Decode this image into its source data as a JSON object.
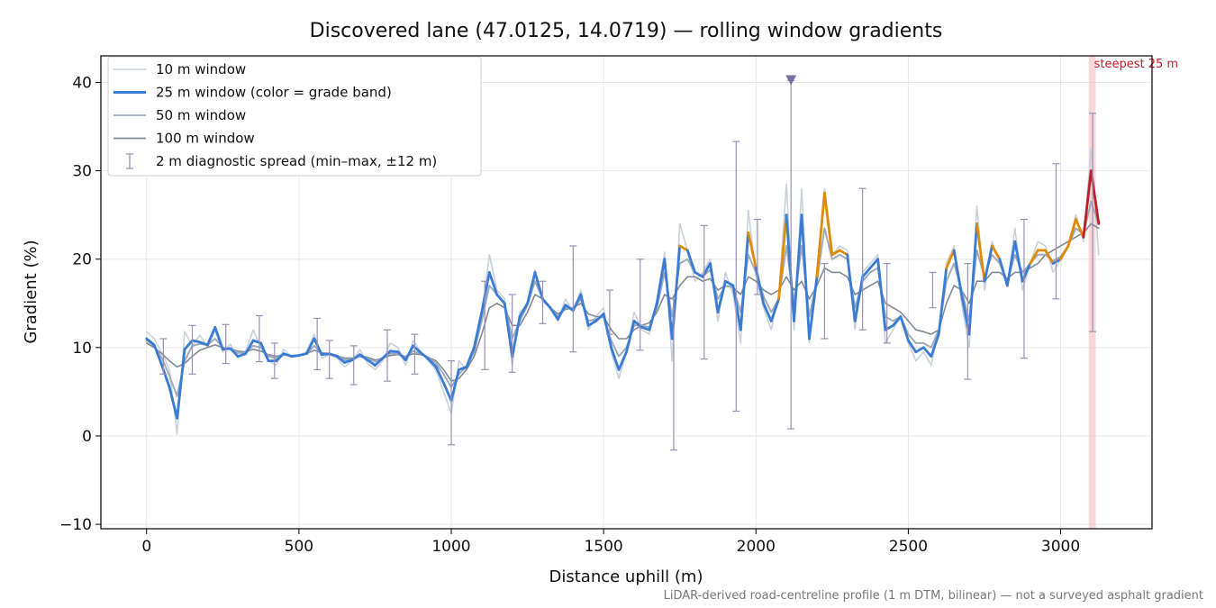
{
  "chart_data": {
    "type": "line",
    "title": "Discovered lane (47.0125, 14.0719) — rolling window gradients",
    "xlabel": "Distance uphill (m)",
    "ylabel": "Gradient (%)",
    "xlim": [
      -150,
      3300
    ],
    "ylim": [
      -10.5,
      43
    ],
    "xticks": [
      0,
      500,
      1000,
      1500,
      2000,
      2500,
      3000
    ],
    "yticks": [
      -10,
      0,
      10,
      20,
      30,
      40
    ],
    "ytick_labels": [
      "−10",
      "0",
      "10",
      "20",
      "30",
      "40"
    ],
    "grid": true,
    "legend_position": "top-left",
    "footnote": "LiDAR-derived road-centreline profile (1 m DTM, bilinear) — not a surveyed asphalt gradient",
    "legend": [
      {
        "label": "10 m window",
        "color": "#c8d0da",
        "style": "line-thin"
      },
      {
        "label": "25 m window (color = grade band)",
        "color": "#3a7bd5",
        "style": "line-thick"
      },
      {
        "label": "50 m window",
        "color": "#9eabb8",
        "style": "line"
      },
      {
        "label": "100 m window",
        "color": "#808a96",
        "style": "line"
      },
      {
        "label": "2 m diagnostic spread (min–max, ±12 m)",
        "color": "#9a90b5",
        "style": "errorbar"
      }
    ],
    "grade_bands": [
      {
        "min": -100,
        "max": 20,
        "color": "#3a7bd5"
      },
      {
        "min": 20,
        "max": 25,
        "color": "#e08a00"
      },
      {
        "min": 25,
        "max": 100,
        "color": "#c01c28"
      }
    ],
    "steepest": {
      "label": "steepest 25 m",
      "x_range": [
        3092,
        3115
      ],
      "color": "#f4b6b6",
      "label_color": "#c01c28"
    },
    "marker": {
      "x": 2115,
      "y": 40.2,
      "color": "#7d6e9e"
    },
    "x": [
      0,
      25,
      50,
      75,
      100,
      125,
      150,
      175,
      200,
      225,
      250,
      275,
      300,
      325,
      350,
      375,
      400,
      425,
      450,
      475,
      500,
      525,
      550,
      575,
      600,
      625,
      650,
      675,
      700,
      725,
      750,
      775,
      800,
      825,
      850,
      875,
      900,
      925,
      950,
      975,
      1000,
      1025,
      1050,
      1075,
      1100,
      1125,
      1150,
      1175,
      1200,
      1225,
      1250,
      1275,
      1300,
      1325,
      1350,
      1375,
      1400,
      1425,
      1450,
      1475,
      1500,
      1525,
      1550,
      1575,
      1600,
      1625,
      1650,
      1675,
      1700,
      1725,
      1750,
      1775,
      1800,
      1825,
      1850,
      1875,
      1900,
      1925,
      1950,
      1975,
      2000,
      2025,
      2050,
      2075,
      2100,
      2125,
      2150,
      2175,
      2200,
      2225,
      2250,
      2275,
      2300,
      2325,
      2350,
      2375,
      2400,
      2425,
      2450,
      2475,
      2500,
      2525,
      2550,
      2575,
      2600,
      2625,
      2650,
      2675,
      2700,
      2725,
      2750,
      2775,
      2800,
      2825,
      2850,
      2875,
      2900,
      2925,
      2950,
      2975,
      3000,
      3025,
      3050,
      3075,
      3100,
      3125
    ],
    "series": [
      {
        "name": "10 m window",
        "color": "#c8d0da",
        "width": 1.6,
        "values": [
          11.8,
          11.0,
          9.4,
          7.5,
          0.2,
          11.8,
          10.2,
          11.4,
          10.0,
          12.0,
          9.5,
          10.4,
          8.8,
          9.6,
          12.0,
          10.0,
          8.5,
          8.0,
          9.8,
          9.0,
          9.2,
          9.5,
          11.5,
          8.8,
          9.2,
          8.8,
          7.8,
          8.5,
          9.8,
          8.2,
          7.5,
          8.5,
          10.5,
          10.0,
          8.0,
          10.8,
          9.5,
          8.5,
          7.4,
          5.0,
          2.5,
          8.5,
          7.5,
          10.0,
          13.8,
          20.5,
          16.5,
          15.5,
          8.0,
          14.0,
          14.8,
          18.8,
          15.2,
          14.5,
          13.0,
          15.5,
          14.0,
          16.5,
          12.0,
          13.5,
          14.5,
          9.5,
          6.5,
          9.5,
          14.0,
          12.0,
          11.5,
          15.5,
          20.8,
          8.5,
          24.0,
          21.0,
          17.5,
          18.5,
          20.0,
          13.0,
          18.5,
          16.0,
          10.5,
          25.5,
          18.0,
          14.5,
          12.0,
          16.0,
          28.5,
          12.0,
          28.0,
          10.5,
          18.5,
          28.0,
          20.5,
          21.5,
          21.0,
          12.0,
          18.5,
          19.5,
          20.5,
          10.5,
          12.0,
          13.5,
          10.5,
          8.5,
          9.5,
          8.0,
          12.0,
          19.5,
          21.5,
          15.0,
          10.0,
          26.0,
          16.5,
          22.0,
          19.5,
          17.0,
          23.5,
          16.5,
          19.5,
          22.0,
          21.5,
          18.5,
          20.0,
          21.5,
          25.0,
          22.0,
          32.5,
          20.5
        ]
      },
      {
        "name": "25 m window",
        "color": "#3a7bd5",
        "width": 2.8,
        "banded": true,
        "values": [
          11.0,
          10.3,
          8.0,
          5.5,
          2.0,
          9.8,
          10.8,
          10.6,
          10.3,
          12.3,
          9.8,
          9.9,
          9.0,
          9.3,
          10.8,
          10.5,
          8.5,
          8.5,
          9.3,
          9.0,
          9.1,
          9.3,
          11.0,
          9.2,
          9.3,
          9.0,
          8.3,
          8.6,
          9.2,
          8.6,
          8.0,
          8.8,
          9.6,
          9.5,
          8.6,
          10.2,
          9.4,
          8.7,
          7.8,
          6.0,
          4.0,
          7.5,
          7.8,
          10.0,
          14.0,
          18.5,
          16.0,
          15.0,
          9.0,
          13.5,
          15.0,
          18.5,
          15.5,
          14.5,
          13.2,
          14.8,
          14.2,
          16.0,
          12.5,
          13.0,
          13.8,
          10.0,
          7.5,
          9.5,
          13.0,
          12.3,
          12.0,
          15.0,
          20.0,
          11.0,
          21.5,
          21.0,
          18.5,
          18.0,
          19.5,
          14.0,
          17.5,
          17.0,
          12.0,
          23.0,
          19.0,
          15.0,
          13.0,
          15.5,
          25.0,
          13.0,
          25.0,
          11.0,
          18.0,
          27.5,
          20.5,
          21.0,
          20.5,
          13.0,
          18.0,
          19.0,
          20.0,
          12.0,
          12.5,
          13.5,
          10.8,
          9.5,
          10.0,
          9.0,
          11.5,
          19.0,
          21.0,
          16.0,
          11.5,
          24.0,
          17.5,
          21.5,
          20.0,
          17.0,
          22.0,
          17.5,
          19.5,
          21.0,
          21.0,
          19.5,
          20.0,
          21.5,
          24.5,
          22.5,
          30.0,
          24.0
        ]
      },
      {
        "name": "50 m window",
        "color": "#9eabb8",
        "width": 2.0,
        "values": [
          10.8,
          10.2,
          8.8,
          6.8,
          4.5,
          8.5,
          10.2,
          10.4,
          10.3,
          11.0,
          10.0,
          9.8,
          9.4,
          9.4,
          10.2,
          10.0,
          9.0,
          8.8,
          9.2,
          9.1,
          9.1,
          9.3,
          10.2,
          9.4,
          9.3,
          9.1,
          8.6,
          8.7,
          9.0,
          8.8,
          8.4,
          8.8,
          9.3,
          9.3,
          8.9,
          9.6,
          9.3,
          8.9,
          8.2,
          7.0,
          5.5,
          7.0,
          7.8,
          9.5,
          13.0,
          17.0,
          16.0,
          15.0,
          11.0,
          13.0,
          14.8,
          17.5,
          15.5,
          14.5,
          13.5,
          14.5,
          14.3,
          15.5,
          13.0,
          13.2,
          13.5,
          10.8,
          9.0,
          10.0,
          12.5,
          12.5,
          12.3,
          14.5,
          18.5,
          13.5,
          19.5,
          20.0,
          18.5,
          18.0,
          18.8,
          15.5,
          17.0,
          16.8,
          14.0,
          20.5,
          18.5,
          15.8,
          14.0,
          15.5,
          21.5,
          15.0,
          21.5,
          13.5,
          17.5,
          23.5,
          20.0,
          20.5,
          20.0,
          14.5,
          17.5,
          18.5,
          19.0,
          13.5,
          13.0,
          13.5,
          11.5,
          10.5,
          10.5,
          10.0,
          12.0,
          17.5,
          19.5,
          16.5,
          13.0,
          21.0,
          18.0,
          20.5,
          19.5,
          17.5,
          20.5,
          18.5,
          19.5,
          20.5,
          20.5,
          19.8,
          20.3,
          21.5,
          23.5,
          22.8,
          26.5,
          24.0
        ]
      },
      {
        "name": "100 m window",
        "color": "#808a96",
        "width": 1.6,
        "values": [
          10.5,
          10.0,
          9.3,
          8.5,
          7.8,
          8.2,
          9.0,
          9.7,
          10.0,
          10.3,
          10.0,
          9.8,
          9.6,
          9.5,
          9.8,
          9.6,
          9.2,
          9.0,
          9.2,
          9.1,
          9.1,
          9.3,
          9.7,
          9.4,
          9.3,
          9.1,
          8.8,
          8.8,
          9.0,
          8.9,
          8.6,
          8.8,
          9.1,
          9.2,
          9.0,
          9.3,
          9.2,
          8.9,
          8.5,
          7.5,
          6.2,
          6.5,
          7.5,
          9.0,
          11.5,
          14.5,
          15.0,
          14.5,
          12.5,
          12.5,
          14.0,
          16.0,
          15.5,
          14.5,
          13.8,
          14.3,
          14.5,
          15.0,
          13.8,
          13.5,
          13.5,
          12.0,
          11.0,
          11.0,
          12.0,
          12.5,
          12.8,
          14.0,
          16.0,
          15.5,
          17.0,
          18.0,
          18.0,
          17.5,
          17.8,
          16.5,
          17.0,
          16.8,
          16.0,
          18.0,
          17.5,
          16.5,
          16.0,
          16.5,
          18.0,
          16.5,
          17.5,
          15.5,
          17.0,
          19.0,
          18.5,
          18.5,
          18.0,
          16.0,
          16.5,
          17.0,
          17.5,
          15.0,
          14.5,
          14.0,
          13.0,
          12.0,
          11.8,
          11.5,
          12.0,
          15.0,
          17.0,
          16.5,
          15.0,
          17.5,
          17.5,
          18.5,
          18.5,
          17.8,
          18.5,
          18.5,
          19.0,
          19.5,
          20.5,
          21.0,
          21.5,
          22.0,
          22.5,
          23.0,
          24.0,
          23.5
        ]
      }
    ],
    "error_bars": [
      {
        "x": 55,
        "low": 7.0,
        "high": 11.0
      },
      {
        "x": 150,
        "low": 7.0,
        "high": 12.5
      },
      {
        "x": 260,
        "low": 8.2,
        "high": 12.6
      },
      {
        "x": 370,
        "low": 8.4,
        "high": 13.6
      },
      {
        "x": 420,
        "low": 6.5,
        "high": 10.5
      },
      {
        "x": 560,
        "low": 7.5,
        "high": 13.3
      },
      {
        "x": 600,
        "low": 6.5,
        "high": 10.8
      },
      {
        "x": 680,
        "low": 5.8,
        "high": 10.2
      },
      {
        "x": 790,
        "low": 6.2,
        "high": 12.0
      },
      {
        "x": 880,
        "low": 7.0,
        "high": 11.5
      },
      {
        "x": 1000,
        "low": -1.0,
        "high": 8.5
      },
      {
        "x": 1110,
        "low": 7.5,
        "high": 17.5
      },
      {
        "x": 1200,
        "low": 7.2,
        "high": 16.0
      },
      {
        "x": 1300,
        "low": 12.7,
        "high": 17.5
      },
      {
        "x": 1400,
        "low": 9.5,
        "high": 21.5
      },
      {
        "x": 1520,
        "low": 11.5,
        "high": 16.5
      },
      {
        "x": 1620,
        "low": 9.7,
        "high": 20.0
      },
      {
        "x": 1730,
        "low": -1.6,
        "high": 15.5
      },
      {
        "x": 1830,
        "low": 8.7,
        "high": 23.8
      },
      {
        "x": 1935,
        "low": 2.8,
        "high": 33.3
      },
      {
        "x": 2005,
        "low": 16.0,
        "high": 24.5
      },
      {
        "x": 2115,
        "low": 0.8,
        "high": 40.2
      },
      {
        "x": 2225,
        "low": 11.0,
        "high": 19.5
      },
      {
        "x": 2350,
        "low": 12.0,
        "high": 28.0
      },
      {
        "x": 2430,
        "low": 10.5,
        "high": 19.5
      },
      {
        "x": 2580,
        "low": 14.5,
        "high": 18.5
      },
      {
        "x": 2695,
        "low": 6.4,
        "high": 19.5
      },
      {
        "x": 2880,
        "low": 8.8,
        "high": 24.5
      },
      {
        "x": 2985,
        "low": 15.5,
        "high": 30.8
      },
      {
        "x": 3105,
        "low": 11.8,
        "high": 36.5
      }
    ]
  }
}
